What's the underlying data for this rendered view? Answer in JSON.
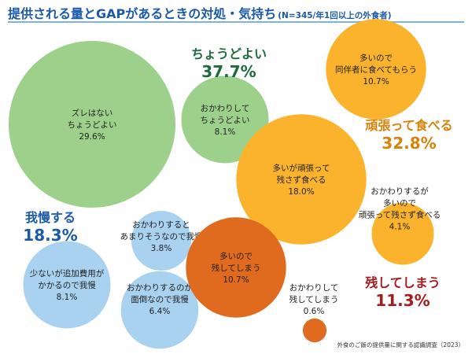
{
  "title": "提供される量とGAPがあるときの対処・気持ち",
  "subtitle": "(N=345/年1回以上の外食者)",
  "source": "外食のご飯の提供量に関する認識調査（2023）",
  "chart_data": {
    "type": "bubble",
    "unit": "%",
    "groups": [
      {
        "id": "just-right",
        "name": "ちょうどよい",
        "total": "37.7%",
        "color": "#1e6b3c",
        "fill": "#9dd18b",
        "items": [
          {
            "id": "no-gap-just-right",
            "lines": [
              "ズレはない",
              "ちょうどよい"
            ],
            "value": 29.6,
            "label": "29.6%"
          },
          {
            "id": "refill-just-right",
            "lines": [
              "おかわりして",
              "ちょうどよい"
            ],
            "value": 8.1,
            "label": "8.1%"
          }
        ]
      },
      {
        "id": "eat-hard",
        "name": "頑張って食べる",
        "total": "32.8%",
        "color": "#d9820a",
        "fill": "#fbb32d",
        "items": [
          {
            "id": "too-much-eat-all",
            "lines": [
              "多いが頑張って",
              "残さず食べる"
            ],
            "value": 18.0,
            "label": "18.0%"
          },
          {
            "id": "too-much-share",
            "lines": [
              "多いので",
              "同伴者に食べてもらう"
            ],
            "value": 10.7,
            "label": "10.7%"
          },
          {
            "id": "refill-too-much-eat-all",
            "lines": [
              "おかわりするが",
              "多いので",
              "頑張って残さず食べる"
            ],
            "value": 4.1,
            "label": "4.1%"
          }
        ]
      },
      {
        "id": "endure",
        "name": "我慢する",
        "total": "18.3%",
        "color": "#1a5aa8",
        "fill": "#a9d2f0",
        "items": [
          {
            "id": "small-extra-cost",
            "lines": [
              "少ないが追加費用が",
              "かかるので我慢"
            ],
            "value": 8.1,
            "label": "8.1%"
          },
          {
            "id": "refill-bother",
            "lines": [
              "おかわりするのが",
              "面倒なので我慢"
            ],
            "value": 6.4,
            "label": "6.4%"
          },
          {
            "id": "refill-leftover-fear",
            "lines": [
              "おかわりすると",
              "あまりそうなので我慢"
            ],
            "value": 3.8,
            "label": "3.8%"
          }
        ]
      },
      {
        "id": "leave",
        "name": "残してしまう",
        "total": "11.3%",
        "color": "#a51c1c",
        "fill": "#e06a1e",
        "items": [
          {
            "id": "too-much-leave",
            "lines": [
              "多いので",
              "残してしまう"
            ],
            "value": 10.7,
            "label": "10.7%"
          },
          {
            "id": "refill-leave",
            "lines": [
              "おかわりして",
              "残してしまう"
            ],
            "value": 0.6,
            "label": "0.6%"
          }
        ]
      }
    ]
  }
}
